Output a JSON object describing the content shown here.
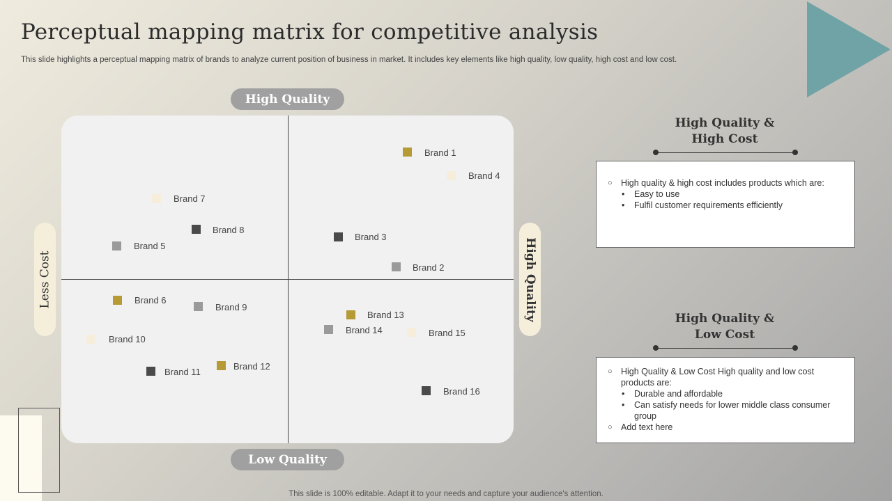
{
  "slide": {
    "title": "Perceptual mapping matrix for competitive analysis",
    "subtitle": "This slide highlights a perceptual mapping matrix of brands to analyze current position of business in market. It includes key elements like high quality, low quality, high cost and low cost.",
    "footer": "This slide is 100% editable. Adapt it to your needs and capture your audience's attention."
  },
  "matrix": {
    "axes": {
      "top": "High Quality",
      "bottom": "Low Quality",
      "left": "Less Cost",
      "right": "High Quality"
    },
    "colors": {
      "gold": "#b59a35",
      "gray": "#9a9a9a",
      "dark": "#4a4a4a",
      "cream": "#f6eedb"
    },
    "brands": [
      {
        "label": "Brand 1",
        "color": "gold"
      },
      {
        "label": "Brand 4",
        "color": "cream"
      },
      {
        "label": "Brand 7",
        "color": "cream"
      },
      {
        "label": "Brand 8",
        "color": "dark"
      },
      {
        "label": "Brand 5",
        "color": "gray"
      },
      {
        "label": "Brand 3",
        "color": "dark"
      },
      {
        "label": "Brand 2",
        "color": "gray"
      },
      {
        "label": "Brand 6",
        "color": "gold"
      },
      {
        "label": "Brand 9",
        "color": "gray"
      },
      {
        "label": "Brand 13",
        "color": "gold"
      },
      {
        "label": "Brand 14",
        "color": "gray"
      },
      {
        "label": "Brand 15",
        "color": "cream"
      },
      {
        "label": "Brand 10",
        "color": "cream"
      },
      {
        "label": "Brand 12",
        "color": "gold"
      },
      {
        "label": "Brand 11",
        "color": "dark"
      },
      {
        "label": "Brand 16",
        "color": "dark"
      }
    ]
  },
  "categories": [
    {
      "title_line1": "High Quality &",
      "title_line2": "High Cost",
      "intro": "High quality & high cost includes products which are:",
      "bullets": [
        "Easy to use",
        "Fulfil customer requirements efficiently"
      ],
      "extra": ""
    },
    {
      "title_line1": "High Quality &",
      "title_line2": "Low Cost",
      "intro": "High Quality & Low Cost High quality and low cost products are:",
      "bullets": [
        "Durable and affordable",
        "Can satisfy needs for lower middle class consumer group"
      ],
      "extra": "Add text here"
    }
  ]
}
